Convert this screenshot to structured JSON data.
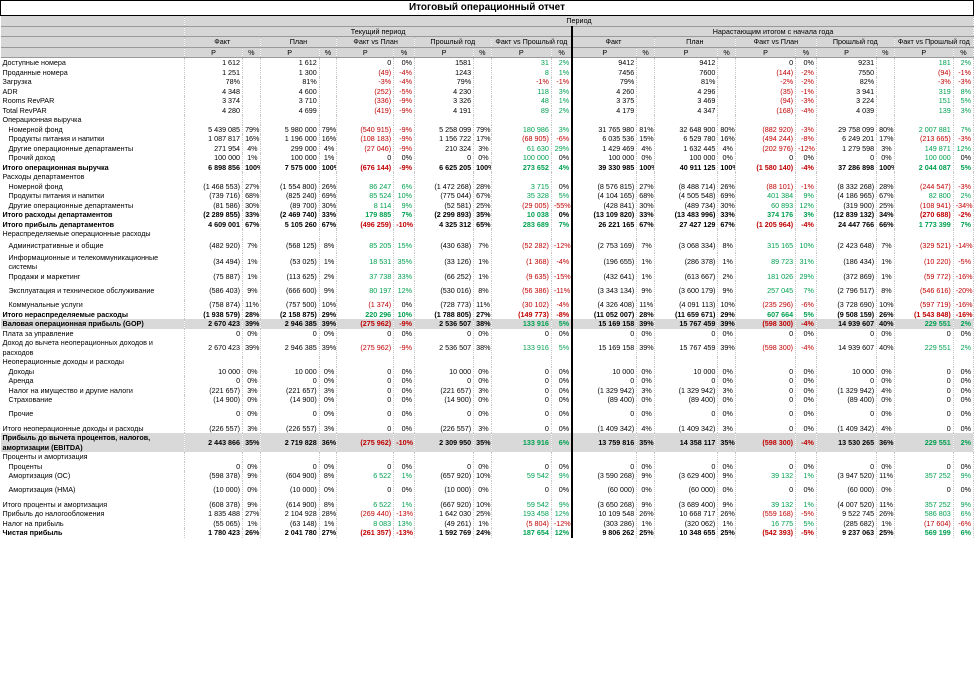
{
  "title": "Итоговый операционный отчет",
  "header": {
    "period": "Период",
    "current": "Текущий период",
    "ytd": "Нарастающим итогом с начала года",
    "cols": [
      "Факт",
      "План",
      "Факт vs План",
      "Прошлый год",
      "Факт vs Прошлый год"
    ],
    "rub": "Р",
    "pct": "%"
  },
  "colors": {
    "negative": "#c00000",
    "positive": "#00a050",
    "gray": "#d9d9d9"
  },
  "rows": [
    {
      "label": "Доступные номера",
      "v": [
        "1 612",
        "",
        "1 612",
        "",
        "0",
        "0%",
        "1581",
        "",
        "31",
        "2%",
        "9412",
        "",
        "9412",
        "",
        "0",
        "0%",
        "9231",
        "",
        "181",
        "2%"
      ]
    },
    {
      "label": "Проданные номера",
      "v": [
        "1 251",
        "",
        "1 300",
        "",
        "(49)",
        "-4%",
        "1243",
        "",
        "8",
        "1%",
        "7456",
        "",
        "7600",
        "",
        "(144)",
        "-2%",
        "7550",
        "",
        "(94)",
        "-1%"
      ]
    },
    {
      "label": "Загрузка",
      "v": [
        "78%",
        "",
        "81%",
        "",
        "-3%",
        "-4%",
        "79%",
        "",
        "-1%",
        "-1%",
        "79%",
        "",
        "81%",
        "",
        "-2%",
        "-2%",
        "82%",
        "",
        "-3%",
        "-3%"
      ]
    },
    {
      "label": "ADR",
      "v": [
        "4 348",
        "",
        "4 600",
        "",
        "(252)",
        "-5%",
        "4 230",
        "",
        "118",
        "3%",
        "4 260",
        "",
        "4 296",
        "",
        "(35)",
        "-1%",
        "3 941",
        "",
        "319",
        "8%"
      ]
    },
    {
      "label": "Rooms RevPAR",
      "v": [
        "3 374",
        "",
        "3 710",
        "",
        "(336)",
        "-9%",
        "3 326",
        "",
        "48",
        "1%",
        "3 375",
        "",
        "3 469",
        "",
        "(94)",
        "-3%",
        "3 224",
        "",
        "151",
        "5%"
      ]
    },
    {
      "label": "Total RevPAR",
      "v": [
        "4 280",
        "",
        "4 699",
        "",
        "(419)",
        "-9%",
        "4 191",
        "",
        "89",
        "2%",
        "4 179",
        "",
        "4 347",
        "",
        "(168)",
        "-4%",
        "4 039",
        "",
        "139",
        "3%"
      ]
    },
    {
      "label": "Операционная выручка",
      "type": "sec"
    },
    {
      "label": "Номерной фонд",
      "ind": 1,
      "v": [
        "5 439 085",
        "79%",
        "5 980 000",
        "79%",
        "(540 915)",
        "-9%",
        "5 258 099",
        "79%",
        "180 986",
        "3%",
        "31 765 980",
        "81%",
        "32 648 900",
        "80%",
        "(882 920)",
        "-3%",
        "29 758 099",
        "80%",
        "2 007 881",
        "7%"
      ]
    },
    {
      "label": "Продукты питания и напитки",
      "ind": 1,
      "v": [
        "1 087 817",
        "16%",
        "1 196 000",
        "16%",
        "(108 183)",
        "-9%",
        "1 156 722",
        "17%",
        "(68 905)",
        "-6%",
        "6 035 536",
        "15%",
        "6 529 780",
        "16%",
        "(494 244)",
        "-8%",
        "6 249 201",
        "17%",
        "(213 665)",
        "-3%"
      ]
    },
    {
      "label": "Другие операционные департаменты",
      "ind": 1,
      "v": [
        "271 954",
        "4%",
        "299 000",
        "4%",
        "(27 046)",
        "-9%",
        "210 324",
        "3%",
        "61 630",
        "29%",
        "1 429 469",
        "4%",
        "1 632 445",
        "4%",
        "(202 976)",
        "-12%",
        "1 279 598",
        "3%",
        "149 871",
        "12%"
      ]
    },
    {
      "label": "Прочий доход",
      "ind": 1,
      "v": [
        "100 000",
        "1%",
        "100 000",
        "1%",
        "0",
        "0%",
        "0",
        "0%",
        "100 000",
        "0%",
        "100 000",
        "0%",
        "100 000",
        "0%",
        "0",
        "0%",
        "0",
        "0%",
        "100 000",
        "0%"
      ]
    },
    {
      "label": "Итого операционная выручка",
      "type": "bold",
      "v": [
        "6 898 856",
        "100%",
        "7 575 000",
        "100%",
        "(676 144)",
        "-9%",
        "6 625 205",
        "100%",
        "273 652",
        "4%",
        "39 330 985",
        "100%",
        "40 911 125",
        "100%",
        "(1 580 140)",
        "-4%",
        "37 286 898",
        "100%",
        "2 044 087",
        "5%"
      ]
    },
    {
      "label": "Расходы департаментов",
      "type": "sec"
    },
    {
      "label": "Номерной фонд",
      "ind": 1,
      "v": [
        "(1 468 553)",
        "27%",
        "(1 554 800)",
        "26%",
        "86 247",
        "6%",
        "(1 472 268)",
        "28%",
        "3 715",
        "0%",
        "(8 576 815)",
        "27%",
        "(8 488 714)",
        "26%",
        "(88 101)",
        "-1%",
        "(8 332 268)",
        "28%",
        "(244 547)",
        "-3%"
      ]
    },
    {
      "label": "Продукты питания и напитки",
      "ind": 1,
      "v": [
        "(739 716)",
        "68%",
        "(825 240)",
        "69%",
        "85 524",
        "10%",
        "(775 044)",
        "67%",
        "35 328",
        "5%",
        "(4 104 165)",
        "68%",
        "(4 505 548)",
        "69%",
        "401 384",
        "9%",
        "(4 186 965)",
        "67%",
        "82 800",
        "2%"
      ]
    },
    {
      "label": "Другие операционные департаменты",
      "ind": 1,
      "v": [
        "(81 586)",
        "30%",
        "(89 700)",
        "30%",
        "8 114",
        "9%",
        "(52 581)",
        "25%",
        "(29 005)",
        "-55%",
        "(428 841)",
        "30%",
        "(489 734)",
        "30%",
        "60 893",
        "12%",
        "(319 900)",
        "25%",
        "(108 941)",
        "-34%"
      ]
    },
    {
      "label": "Итого расходы департаментов",
      "type": "bold",
      "v": [
        "(2 289 855)",
        "33%",
        "(2 469 740)",
        "33%",
        "179 885",
        "7%",
        "(2 299 893)",
        "35%",
        "10 038",
        "0%",
        "(13 109 820)",
        "33%",
        "(13 483 996)",
        "33%",
        "374 176",
        "3%",
        "(12 839 132)",
        "34%",
        "(270 688)",
        "-2%"
      ]
    },
    {
      "label": "Итого прибыль департаментов",
      "type": "bold",
      "v": [
        "4 609 001",
        "67%",
        "5 105 260",
        "67%",
        "(496 259)",
        "-10%",
        "4 325 312",
        "65%",
        "283 689",
        "7%",
        "26 221 165",
        "67%",
        "27 427 129",
        "67%",
        "(1 205 964)",
        "-4%",
        "24 447 766",
        "66%",
        "1 773 399",
        "7%"
      ]
    },
    {
      "label": "Нераспределяемые операционные расходы",
      "type": "sec"
    },
    {
      "label": "Административные и общие",
      "ind": 1,
      "tall": 1,
      "v": [
        "(482 920)",
        "7%",
        "(568 125)",
        "8%",
        "85 205",
        "15%",
        "(430 638)",
        "7%",
        "(52 282)",
        "-12%",
        "(2 753 169)",
        "7%",
        "(3 068 334)",
        "8%",
        "315 165",
        "10%",
        "(2 423 648)",
        "7%",
        "(329 521)",
        "-14%"
      ]
    },
    {
      "label": "Информационные и телекоммуникационные системы",
      "ind": 1,
      "tall": 2,
      "v": [
        "(34 494)",
        "1%",
        "(53 025)",
        "1%",
        "18 531",
        "35%",
        "(33 126)",
        "1%",
        "(1 368)",
        "-4%",
        "(196 655)",
        "1%",
        "(286 378)",
        "1%",
        "89 723",
        "31%",
        "(186 434)",
        "1%",
        "(10 220)",
        "-5%"
      ]
    },
    {
      "label": "Продажи и маркетинг",
      "ind": 1,
      "v": [
        "(75 887)",
        "1%",
        "(113 625)",
        "2%",
        "37 738",
        "33%",
        "(66 252)",
        "1%",
        "(9 635)",
        "-15%",
        "(432 641)",
        "1%",
        "(613 667)",
        "2%",
        "181 026",
        "29%",
        "(372 869)",
        "1%",
        "(59 772)",
        "-16%"
      ]
    },
    {
      "label": "Эксплуатация и техническое обслуживание",
      "ind": 1,
      "tall": 2,
      "v": [
        "(586 403)",
        "9%",
        "(666 600)",
        "9%",
        "80 197",
        "12%",
        "(530 016)",
        "8%",
        "(56 386)",
        "-11%",
        "(3 343 134)",
        "9%",
        "(3 600 179)",
        "9%",
        "257 045",
        "7%",
        "(2 796 517)",
        "8%",
        "(546 616)",
        "-20%"
      ]
    },
    {
      "label": "Коммунальные услуги",
      "ind": 1,
      "v": [
        "(758 874)",
        "11%",
        "(757 500)",
        "10%",
        "(1 374)",
        "0%",
        "(728 773)",
        "11%",
        "(30 102)",
        "-4%",
        "(4 326 408)",
        "11%",
        "(4 091 113)",
        "10%",
        "(235 296)",
        "-6%",
        "(3 728 690)",
        "10%",
        "(597 719)",
        "-16%"
      ]
    },
    {
      "label": "Итого нераспределяемые расходы",
      "type": "bold",
      "v": [
        "(1 938 579)",
        "28%",
        "(2 158 875)",
        "29%",
        "220 296",
        "10%",
        "(1 788 805)",
        "27%",
        "(149 773)",
        "-8%",
        "(11 052 007)",
        "28%",
        "(11 659 671)",
        "29%",
        "607 664",
        "5%",
        "(9 508 159)",
        "26%",
        "(1 543 848)",
        "-16%"
      ]
    },
    {
      "label": "Валовая операционная прибыль (GOP)",
      "type": "gray",
      "v": [
        "2 670 423",
        "39%",
        "2 946 385",
        "39%",
        "(275 962)",
        "-9%",
        "2 536 507",
        "38%",
        "133 916",
        "5%",
        "15 169 158",
        "39%",
        "15 767 459",
        "39%",
        "(598 300)",
        "-4%",
        "14 939 607",
        "40%",
        "229 551",
        "2%"
      ]
    },
    {
      "label": "Плата за управление",
      "v": [
        "0",
        "0%",
        "0",
        "0%",
        "0",
        "0%",
        "0",
        "0%",
        "0",
        "0%",
        "0",
        "0%",
        "0",
        "0%",
        "0",
        "0%",
        "0",
        "0%",
        "0",
        "0%"
      ]
    },
    {
      "label": "Доход до вычета неоперационных доходов и расходов",
      "tall": 3,
      "v": [
        "2 670 423",
        "39%",
        "2 946 385",
        "39%",
        "(275 962)",
        "-9%",
        "2 536 507",
        "38%",
        "133 916",
        "5%",
        "15 169 158",
        "39%",
        "15 767 459",
        "39%",
        "(598 300)",
        "-4%",
        "14 939 607",
        "40%",
        "229 551",
        "2%"
      ]
    },
    {
      "label": "Неоперационные доходы и расходы",
      "type": "sec"
    },
    {
      "label": "Доходы",
      "ind": 1,
      "v": [
        "10 000",
        "0%",
        "10 000",
        "0%",
        "0",
        "0%",
        "10 000",
        "0%",
        "0",
        "0%",
        "10 000",
        "0%",
        "10 000",
        "0%",
        "0",
        "0%",
        "10 000",
        "0%",
        "0",
        "0%"
      ]
    },
    {
      "label": "Аренда",
      "ind": 1,
      "v": [
        "0",
        "0%",
        "0",
        "0%",
        "0",
        "0%",
        "0",
        "0%",
        "0",
        "0%",
        "0",
        "0%",
        "0",
        "0%",
        "0",
        "0%",
        "0",
        "0%",
        "0",
        "0%"
      ]
    },
    {
      "label": "Налог на имущество и другие налоги",
      "ind": 1,
      "v": [
        "(221 657)",
        "3%",
        "(221 657)",
        "3%",
        "0",
        "0%",
        "(221 657)",
        "3%",
        "0",
        "0%",
        "(1 329 942)",
        "3%",
        "(1 329 942)",
        "3%",
        "0",
        "0%",
        "(1 329 942)",
        "4%",
        "0",
        "0%"
      ]
    },
    {
      "label": "Страхование",
      "ind": 1,
      "v": [
        "(14 900)",
        "0%",
        "(14 900)",
        "0%",
        "0",
        "0%",
        "(14 900)",
        "0%",
        "0",
        "0%",
        "(89 400)",
        "0%",
        "(89 400)",
        "0%",
        "0",
        "0%",
        "(89 400)",
        "0%",
        "0",
        "0%"
      ]
    },
    {
      "label": "Прочие",
      "ind": 1,
      "tall": 2,
      "v": [
        "0",
        "0%",
        "0",
        "0%",
        "0",
        "0%",
        "0",
        "0%",
        "0",
        "0%",
        "0",
        "0%",
        "0",
        "0%",
        "0",
        "0%",
        "0",
        "0%",
        "0",
        "0%"
      ]
    },
    {
      "label": "Итого неоперационные доходы и расходы",
      "v": [
        "(226 557)",
        "3%",
        "(226 557)",
        "3%",
        "0",
        "0%",
        "(226 557)",
        "3%",
        "0",
        "0%",
        "(1 409 342)",
        "4%",
        "(1 409 342)",
        "3%",
        "0",
        "0%",
        "(1 409 342)",
        "4%",
        "0",
        "0%"
      ]
    },
    {
      "label": "Прибыль до вычета процентов, налогов, амортизации (EBITDA)",
      "type": "gray",
      "tall": 3,
      "v": [
        "2 443 866",
        "35%",
        "2 719 828",
        "36%",
        "(275 962)",
        "-10%",
        "2 309 950",
        "35%",
        "133 916",
        "6%",
        "13 759 816",
        "35%",
        "14 358 117",
        "35%",
        "(598 300)",
        "-4%",
        "13 530 265",
        "36%",
        "229 551",
        "2%"
      ]
    },
    {
      "label": "Проценты и амортизация",
      "type": "sec"
    },
    {
      "label": "Проценты",
      "ind": 1,
      "v": [
        "0",
        "0%",
        "0",
        "0%",
        "0",
        "0%",
        "0",
        "0%",
        "0",
        "0%",
        "0",
        "0%",
        "0",
        "0%",
        "0",
        "0%",
        "0",
        "0%",
        "0",
        "0%"
      ]
    },
    {
      "label": "Амортизация (ОС)",
      "ind": 1,
      "v": [
        "(598 378)",
        "9%",
        "(604 900)",
        "8%",
        "6 522",
        "1%",
        "(657 920)",
        "10%",
        "59 542",
        "9%",
        "(3 590 268)",
        "9%",
        "(3 629 400)",
        "9%",
        "39 132",
        "1%",
        "(3 947 520)",
        "11%",
        "357 252",
        "9%"
      ]
    },
    {
      "label": "Амортизация (НМА)",
      "ind": 1,
      "tall": 2,
      "v": [
        "(10 000)",
        "0%",
        "(10 000)",
        "0%",
        "0",
        "0%",
        "(10 000)",
        "0%",
        "0",
        "0%",
        "(60 000)",
        "0%",
        "(60 000)",
        "0%",
        "0",
        "0%",
        "(60 000)",
        "0%",
        "0",
        "0%"
      ]
    },
    {
      "label": "Итого проценты и амортизация",
      "v": [
        "(608 378)",
        "9%",
        "(614 900)",
        "8%",
        "6 522",
        "1%",
        "(667 920)",
        "10%",
        "59 542",
        "9%",
        "(3 650 268)",
        "9%",
        "(3 689 400)",
        "9%",
        "39 132",
        "1%",
        "(4 007 520)",
        "11%",
        "357 252",
        "9%"
      ]
    },
    {
      "label": "Прибыль до налогообложения",
      "v": [
        "1 835 488",
        "27%",
        "2 104 928",
        "28%",
        "(269 440)",
        "-13%",
        "1 642 030",
        "25%",
        "193 458",
        "12%",
        "10 109 548",
        "26%",
        "10 668 717",
        "26%",
        "(559 168)",
        "-5%",
        "9 522 745",
        "26%",
        "586 803",
        "6%"
      ]
    },
    {
      "label": "Налог на прибыль",
      "v": [
        "(55 065)",
        "1%",
        "(63 148)",
        "1%",
        "8 083",
        "13%",
        "(49 261)",
        "1%",
        "(5 804)",
        "-12%",
        "(303 286)",
        "1%",
        "(320 062)",
        "1%",
        "16 775",
        "5%",
        "(285 682)",
        "1%",
        "(17 604)",
        "-6%"
      ]
    },
    {
      "label": "Чистая прибыль",
      "type": "bold",
      "v": [
        "1 780 423",
        "26%",
        "2 041 780",
        "27%",
        "(261 357)",
        "-13%",
        "1 592 769",
        "24%",
        "187 654",
        "12%",
        "9 806 262",
        "25%",
        "10 348 655",
        "25%",
        "(542 393)",
        "-5%",
        "9 237 063",
        "25%",
        "569 199",
        "6%"
      ]
    }
  ]
}
